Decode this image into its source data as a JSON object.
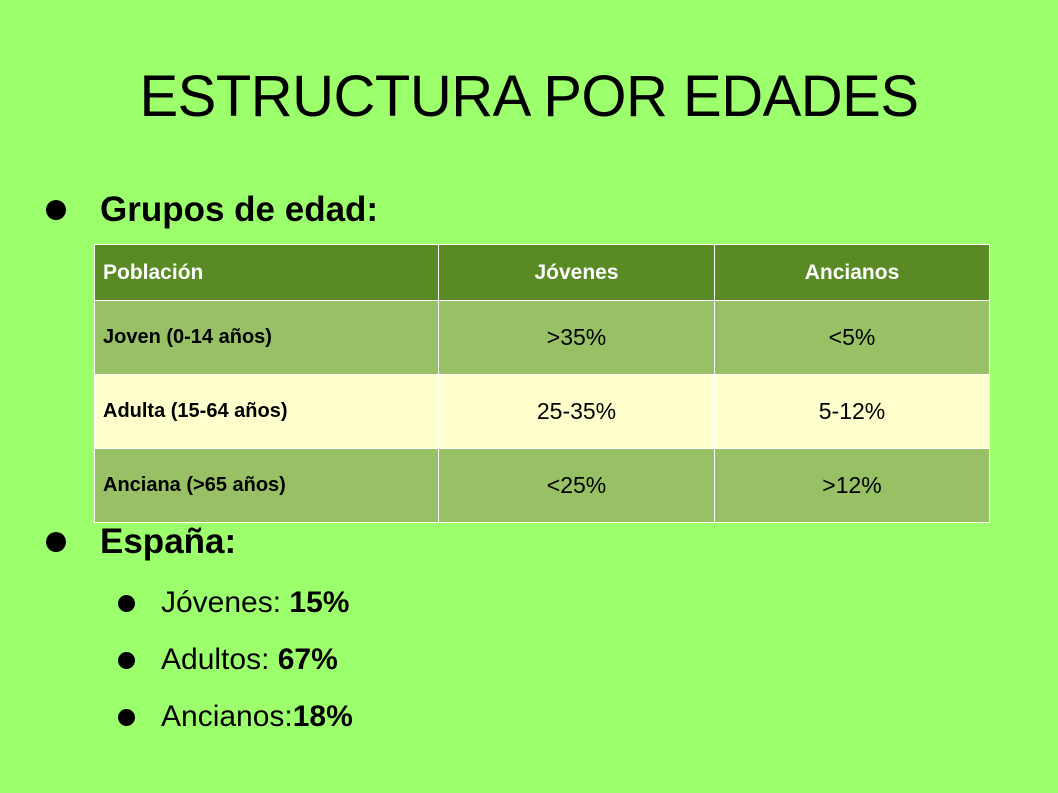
{
  "title": "ESTRUCTURA POR EDADES",
  "bullets": {
    "grupos": "Grupos de edad:",
    "espana": "España:"
  },
  "table": {
    "headers": [
      "Población",
      "Jóvenes",
      "Ancianos"
    ],
    "rows": [
      [
        "Joven (0-14 años)",
        ">35%",
        "<5%"
      ],
      [
        "Adulta (15-64 años)",
        "25-35%",
        "5-12%"
      ],
      [
        "Anciana (>65 años)",
        "<25%",
        ">12%"
      ]
    ]
  },
  "spain": [
    {
      "label": "Jóvenes: ",
      "value": "15%"
    },
    {
      "label": "Adultos: ",
      "value": "67%"
    },
    {
      "label": "Ancianos:",
      "value": "18%"
    }
  ],
  "colors": {
    "background": "#9cff6c",
    "table_header": "#5a8a24",
    "row_dark": "#98c064",
    "row_light": "#ffffce"
  }
}
